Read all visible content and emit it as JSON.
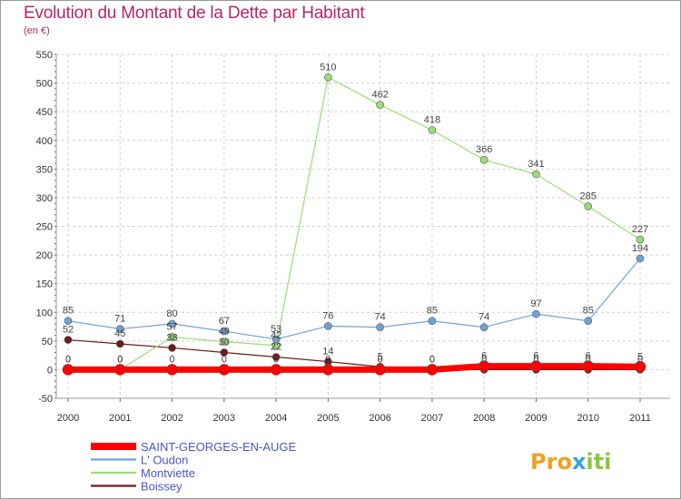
{
  "header": {
    "title": "Evolution du Montant de la Dette par Habitant",
    "subtitle": "(en €)"
  },
  "logo": {
    "letters": [
      "P",
      "r",
      "o",
      "x",
      "i",
      "t",
      "i"
    ],
    "colors": [
      "#f0a020",
      "#f0a020",
      "#f0a020",
      "#3aa0d8",
      "#8cc63f",
      "#8cc63f",
      "#8cc63f"
    ]
  },
  "chart_data": {
    "type": "line",
    "categories": [
      "2000",
      "2001",
      "2002",
      "2003",
      "2004",
      "2005",
      "2006",
      "2007",
      "2008",
      "2009",
      "2010",
      "2011"
    ],
    "ylim": [
      -50,
      550
    ],
    "yticks": [
      -50,
      0,
      50,
      100,
      150,
      200,
      250,
      300,
      350,
      400,
      450,
      500,
      550
    ],
    "grid": true,
    "legend_position": "bottom-left",
    "series": [
      {
        "name": "Boissey",
        "color": "#6b1a1a",
        "width": 1.2,
        "marker": 4,
        "values": [
          52,
          45,
          38,
          30,
          22,
          14,
          5,
          0,
          0,
          0,
          0,
          0
        ]
      },
      {
        "name": "Montviette",
        "color": "#99dd77",
        "width": 1.2,
        "marker": 4,
        "values": [
          0,
          0,
          57,
          49,
          42,
          510,
          462,
          418,
          366,
          341,
          285,
          227
        ]
      },
      {
        "name": "L' Oudon",
        "color": "#6fa3d4",
        "width": 1.2,
        "marker": 4,
        "values": [
          85,
          71,
          80,
          67,
          53,
          76,
          74,
          85,
          74,
          97,
          85,
          194
        ]
      },
      {
        "name": "SAINT-GEORGES-EN-AUGE",
        "color": "#ff0000",
        "width": 7,
        "marker": 6,
        "values": [
          0,
          0,
          0,
          0,
          0,
          0,
          0,
          0,
          6,
          6,
          6,
          5
        ]
      }
    ],
    "legend_order": [
      3,
      2,
      1,
      0
    ]
  }
}
